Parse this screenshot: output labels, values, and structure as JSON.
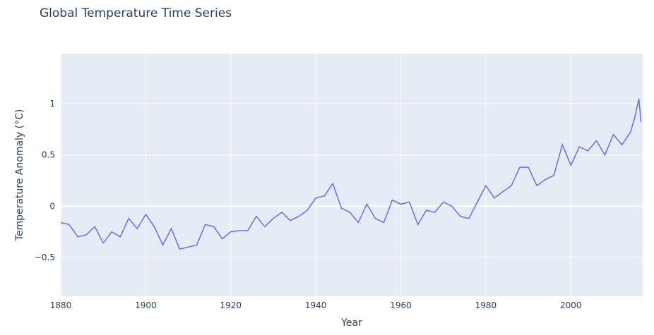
{
  "chart_data": {
    "type": "line",
    "title": "Global Temperature Time Series",
    "xlabel": "Year",
    "ylabel": "Temperature Anomaly (°C)",
    "xlim": [
      1880,
      2016.9
    ],
    "ylim": [
      -0.88,
      1.49
    ],
    "x_ticks": [
      1880,
      1900,
      1920,
      1940,
      1960,
      1980,
      2000
    ],
    "y_ticks": [
      -0.5,
      0,
      0.5,
      1
    ],
    "y_tick_labels": [
      "−0.5",
      "0",
      "0.5",
      "1"
    ],
    "grid": true,
    "legend": "none",
    "colors": {
      "line": "#636efa",
      "plot_bg": "#e5ecf6",
      "grid": "#ffffff",
      "text": "#2a3f5f"
    },
    "series": [
      {
        "x": [
          1880,
          1882,
          1884,
          1886,
          1888,
          1890,
          1892,
          1894,
          1896,
          1898,
          1900,
          1902,
          1904,
          1906,
          1908,
          1910,
          1912,
          1914,
          1916,
          1918,
          1920,
          1922,
          1924,
          1926,
          1928,
          1930,
          1932,
          1934,
          1936,
          1938,
          1940,
          1942,
          1944,
          1946,
          1948,
          1950,
          1952,
          1954,
          1956,
          1958,
          1960,
          1962,
          1964,
          1966,
          1968,
          1970,
          1972,
          1974,
          1976,
          1978,
          1980,
          1982,
          1984,
          1986,
          1988,
          1990,
          1992,
          1994,
          1996,
          1998,
          2000,
          2002,
          2004,
          2006,
          2008,
          2010,
          2012,
          2014,
          2015,
          2016,
          2016.5
        ],
        "y": [
          -0.16,
          -0.18,
          -0.3,
          -0.28,
          -0.2,
          -0.36,
          -0.25,
          -0.3,
          -0.12,
          -0.22,
          -0.08,
          -0.2,
          -0.38,
          -0.22,
          -0.42,
          -0.4,
          -0.38,
          -0.18,
          -0.2,
          -0.32,
          -0.25,
          -0.24,
          -0.24,
          -0.1,
          -0.2,
          -0.12,
          -0.06,
          -0.14,
          -0.1,
          -0.04,
          0.08,
          0.1,
          0.22,
          -0.02,
          -0.06,
          -0.16,
          0.02,
          -0.12,
          -0.16,
          0.06,
          0.02,
          0.04,
          -0.18,
          -0.04,
          -0.06,
          0.04,
          0.0,
          -0.1,
          -0.12,
          0.04,
          0.2,
          0.08,
          0.14,
          0.2,
          0.38,
          0.38,
          0.2,
          0.26,
          0.3,
          0.6,
          0.4,
          0.58,
          0.54,
          0.64,
          0.5,
          0.7,
          0.6,
          0.72,
          0.86,
          1.05,
          0.82
        ]
      }
    ]
  }
}
